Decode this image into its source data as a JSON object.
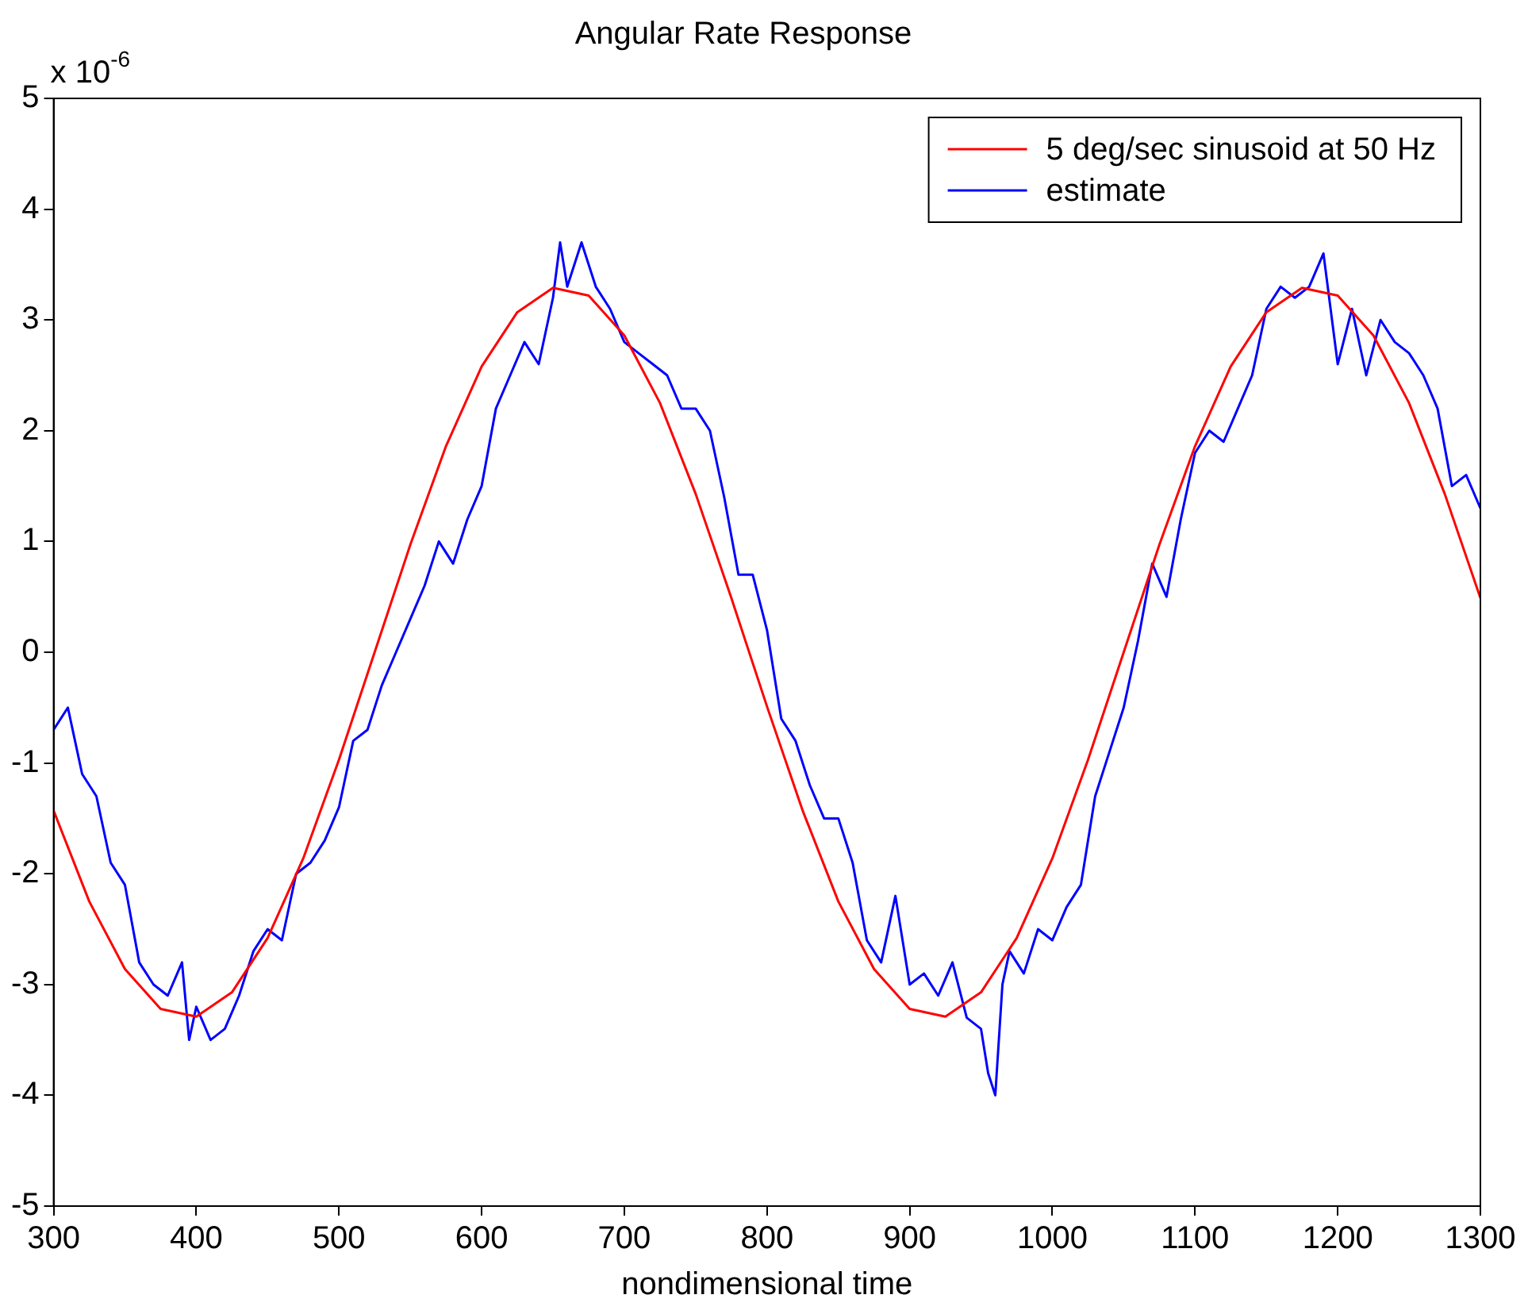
{
  "chart_data": {
    "type": "line",
    "title": "Angular Rate Response",
    "xlabel": "nondimensional time",
    "annotations": [
      "x 10$^{-6}$"
    ],
    "xlim": [
      300,
      1300
    ],
    "xticks": [
      300,
      400,
      500,
      600,
      700,
      800,
      900,
      1000,
      1100,
      1200,
      1300
    ],
    "ylim": [
      -5,
      5
    ],
    "yticks": [
      -5,
      -4,
      -3,
      -2,
      -1,
      0,
      1,
      2,
      3,
      4,
      5
    ],
    "grid": false,
    "legend": "top right",
    "marker": "none",
    "line_style": "solid",
    "series": [
      {
        "name": "5 deg/sec sinusoid at 50 Hz",
        "color": "#ff0000",
        "x": [
          300,
          325,
          350,
          375,
          400,
          425,
          450,
          475,
          500,
          525,
          550,
          575,
          600,
          625,
          650,
          675,
          700,
          725,
          750,
          775,
          800,
          825,
          850,
          875,
          900,
          925,
          950,
          975,
          1000,
          1025,
          1050,
          1075,
          1100,
          1125,
          1150,
          1175,
          1200,
          1225,
          1250,
          1275,
          1300
        ],
        "values": [
          -1.43,
          -2.25,
          -2.86,
          -3.22,
          -3.29,
          -3.07,
          -2.58,
          -1.86,
          -0.97,
          0,
          0.97,
          1.86,
          2.58,
          3.07,
          3.29,
          3.22,
          2.86,
          2.25,
          1.43,
          0.49,
          -0.49,
          -1.43,
          -2.25,
          -2.86,
          -3.22,
          -3.29,
          -3.07,
          -2.58,
          -1.86,
          -0.97,
          0,
          0.97,
          1.86,
          2.58,
          3.07,
          3.29,
          3.22,
          2.86,
          2.25,
          1.43,
          0.49
        ]
      },
      {
        "name": "estimate",
        "color": "#0000ff",
        "x": [
          300,
          310,
          315,
          320,
          330,
          340,
          350,
          360,
          370,
          380,
          390,
          395,
          400,
          410,
          420,
          430,
          440,
          450,
          460,
          470,
          480,
          490,
          500,
          510,
          520,
          530,
          540,
          550,
          560,
          570,
          580,
          590,
          600,
          610,
          620,
          630,
          640,
          650,
          655,
          660,
          670,
          680,
          690,
          700,
          710,
          720,
          730,
          740,
          750,
          760,
          770,
          780,
          790,
          800,
          810,
          820,
          830,
          840,
          850,
          860,
          870,
          880,
          890,
          900,
          910,
          920,
          930,
          940,
          950,
          955,
          960,
          965,
          970,
          980,
          990,
          1000,
          1010,
          1020,
          1030,
          1040,
          1050,
          1060,
          1070,
          1080,
          1090,
          1100,
          1110,
          1120,
          1130,
          1140,
          1150,
          1160,
          1170,
          1180,
          1190,
          1200,
          1210,
          1220,
          1230,
          1240,
          1250,
          1260,
          1270,
          1280,
          1290,
          1300
        ],
        "values": [
          -0.7,
          -0.5,
          -0.8,
          -1.1,
          -1.3,
          -1.9,
          -2.1,
          -2.8,
          -3.0,
          -3.1,
          -2.8,
          -3.5,
          -3.2,
          -3.5,
          -3.4,
          -3.1,
          -2.7,
          -2.5,
          -2.6,
          -2.0,
          -1.9,
          -1.7,
          -1.4,
          -0.8,
          -0.7,
          -0.3,
          0.0,
          0.3,
          0.6,
          1.0,
          0.8,
          1.2,
          1.5,
          2.2,
          2.5,
          2.8,
          2.6,
          3.2,
          3.7,
          3.3,
          3.7,
          3.3,
          3.1,
          2.8,
          2.7,
          2.6,
          2.5,
          2.2,
          2.2,
          2.0,
          1.4,
          0.7,
          0.7,
          0.2,
          -0.6,
          -0.8,
          -1.2,
          -1.5,
          -1.5,
          -1.9,
          -2.6,
          -2.8,
          -2.2,
          -3.0,
          -2.9,
          -3.1,
          -2.8,
          -3.3,
          -3.4,
          -3.8,
          -4.0,
          -3.0,
          -2.7,
          -2.9,
          -2.5,
          -2.6,
          -2.3,
          -2.1,
          -1.3,
          -0.9,
          -0.5,
          0.1,
          0.8,
          0.5,
          1.2,
          1.8,
          2.0,
          1.9,
          2.2,
          2.5,
          3.1,
          3.3,
          3.2,
          3.3,
          3.6,
          2.6,
          3.1,
          2.5,
          3.0,
          2.8,
          2.7,
          2.5,
          2.2,
          1.5,
          1.6,
          1.3
        ]
      }
    ]
  }
}
